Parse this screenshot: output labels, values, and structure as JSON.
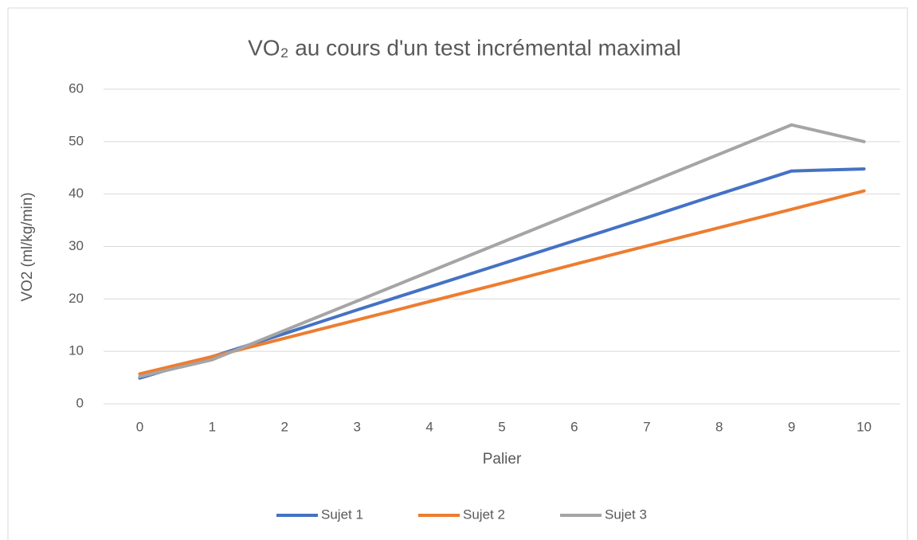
{
  "chart_data": {
    "type": "line",
    "title": "VO₂ au cours d'un test incrémental maximal",
    "x_label": "Palier",
    "y_label": "VO2 (ml/kg/min)",
    "categories": [
      "0",
      "1",
      "2",
      "3",
      "4",
      "5",
      "6",
      "7",
      "8",
      "9",
      "10"
    ],
    "series": [
      {
        "name": "Sujet 1",
        "color": "#4472c4",
        "values": [
          4.9,
          9.0,
          13.4,
          17.9,
          22.3,
          26.7,
          31.1,
          35.5,
          40.0,
          44.4,
          44.8
        ]
      },
      {
        "name": "Sujet 2",
        "color": "#ed7d31",
        "values": [
          5.7,
          9.0,
          12.5,
          16.0,
          19.5,
          23.0,
          26.6,
          30.1,
          33.6,
          37.1,
          40.6
        ]
      },
      {
        "name": "Sujet 3",
        "color": "#a5a5a5",
        "values": [
          5.2,
          8.4,
          14.0,
          19.6,
          25.2,
          30.8,
          36.4,
          42.0,
          47.6,
          53.2,
          50.0
        ]
      }
    ],
    "ylim": [
      0,
      60
    ],
    "yticks": [
      0,
      10,
      20,
      30,
      40,
      50,
      60
    ],
    "grid": true,
    "legend": "bottom"
  }
}
